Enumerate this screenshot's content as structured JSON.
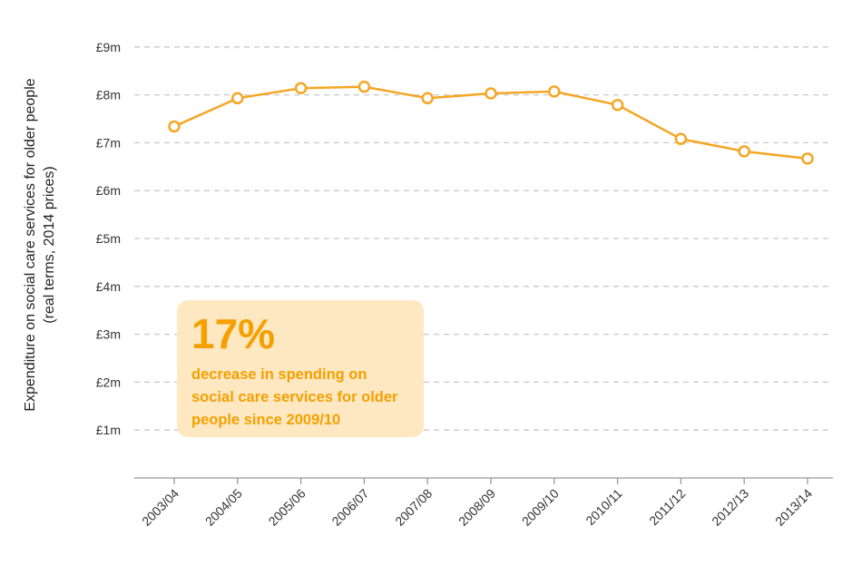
{
  "chart_data": {
    "type": "line",
    "title": "",
    "ylabel": "Expenditure on social care services for older people",
    "ylabel_sub": "(real terms, 2014 prices)",
    "xlabel": "",
    "ylim": [
      0,
      9
    ],
    "yticks": [
      1,
      2,
      3,
      4,
      5,
      6,
      7,
      8,
      9
    ],
    "ytick_labels": [
      "£1m",
      "£2m",
      "£3m",
      "£4m",
      "£5m",
      "£6m",
      "£7m",
      "£8m",
      "£9m"
    ],
    "categories": [
      "2003/04",
      "2004/05",
      "2005/06",
      "2006/07",
      "2007/08",
      "2008/09",
      "2009/10",
      "2010/11",
      "2011/12",
      "2012/13",
      "2013/14"
    ],
    "series": [
      {
        "name": "Expenditure",
        "values": [
          7.34,
          7.93,
          8.14,
          8.17,
          7.93,
          8.03,
          8.07,
          7.79,
          7.08,
          6.82,
          6.67
        ]
      }
    ],
    "colors": {
      "line": "#f5a623",
      "grid": "#c8c8c8",
      "axis": "#999999"
    },
    "grid": true
  },
  "callout": {
    "percent": "17%",
    "text": "decrease in spending on social care services for older people since 2009/10",
    "background": "#fde8c2",
    "color": "#f5a000"
  }
}
